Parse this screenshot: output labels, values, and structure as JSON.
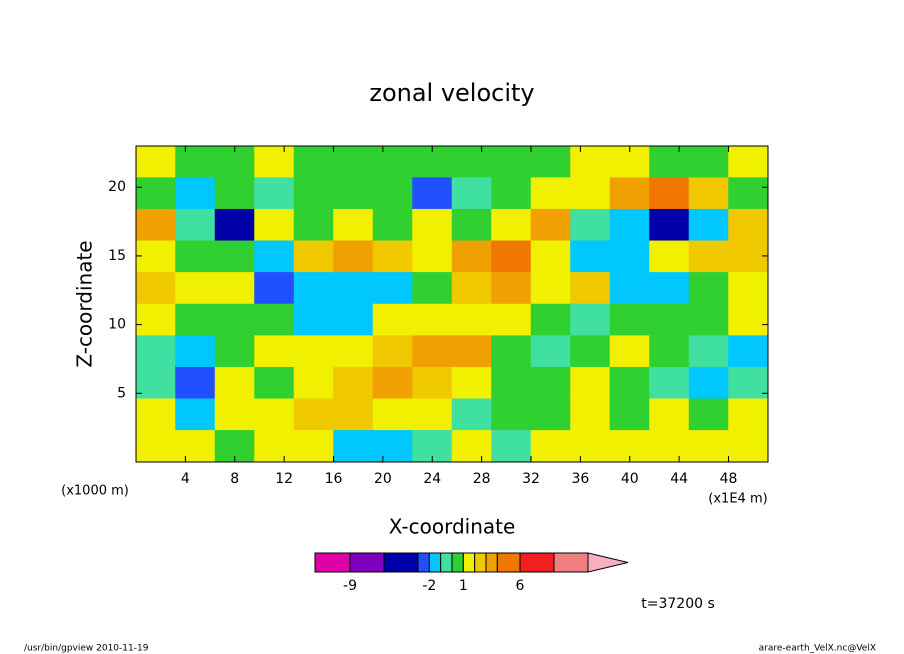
{
  "chart_data": {
    "type": "contour",
    "title": "zonal velocity",
    "x_label": "X-coordinate",
    "y_label": "Z-coordinate",
    "y_unit": "(x1000 m)",
    "x_unit": "(x1E4 m)",
    "time_label": "t=37200 s",
    "footer_left": "/usr/bin/gpview  2010-11-19",
    "footer_right": "arare-earth_VelX.nc@VelX",
    "xlim": [
      0,
      51.2
    ],
    "ylim": [
      0,
      23
    ],
    "xticks": [
      4,
      8,
      12,
      16,
      20,
      24,
      28,
      32,
      36,
      40,
      44,
      48
    ],
    "yticks": [
      5,
      10,
      15,
      20
    ],
    "x": [
      1.6,
      4.8,
      8,
      11.2,
      14.4,
      17.6,
      20.8,
      24,
      27.2,
      30.4,
      33.6,
      36.8,
      40,
      43.2,
      46.4,
      49.6
    ],
    "y": [
      21.85,
      19.55,
      17.25,
      14.95,
      12.65,
      10.35,
      8.05,
      5.75,
      3.45,
      1.15
    ],
    "z": [
      [
        1.5,
        0.5,
        0.5,
        1.5,
        0.5,
        0.5,
        0.5,
        0.5,
        0.5,
        0.5,
        0.5,
        1.5,
        1.5,
        0.5,
        0.5,
        1.5
      ],
      [
        0.5,
        -1.5,
        0.5,
        -0.5,
        0.5,
        0.5,
        0.5,
        -2.5,
        -0.5,
        0.5,
        1.5,
        1.5,
        3.5,
        5,
        2.5,
        0.5
      ],
      [
        3.5,
        -0.5,
        -4,
        1.5,
        0.5,
        1.5,
        0.5,
        1.5,
        0.5,
        1.5,
        3.5,
        -0.5,
        -1.5,
        -4,
        -1.5,
        2.5
      ],
      [
        1.5,
        0.5,
        0.5,
        -1.5,
        2.5,
        3.5,
        2.5,
        1.5,
        3.5,
        5,
        1.5,
        -1.5,
        -1.5,
        1.5,
        2.5,
        2.5
      ],
      [
        2.5,
        1.5,
        1.5,
        -2.5,
        -1.5,
        -1.5,
        -1.5,
        0.5,
        2.5,
        3.5,
        1.5,
        2.5,
        -1.5,
        -1.5,
        0.5,
        1.5
      ],
      [
        1.5,
        0.5,
        0.5,
        0.5,
        -1.5,
        -1.5,
        1.5,
        1.5,
        1.5,
        1.5,
        0.5,
        -0.5,
        0.5,
        0.5,
        0.5,
        1.5
      ],
      [
        -0.5,
        -1.5,
        0.5,
        1.5,
        1.5,
        1.5,
        2.5,
        3.5,
        3.5,
        0.5,
        -0.5,
        0.5,
        1.5,
        0.5,
        -0.5,
        -1.5
      ],
      [
        -0.5,
        -2.5,
        1.5,
        0.5,
        1.5,
        2.5,
        3.5,
        2.5,
        1.5,
        0.5,
        0.5,
        1.5,
        0.5,
        -0.5,
        -1.5,
        -0.5
      ],
      [
        1.5,
        -1.5,
        1.5,
        1.5,
        2.5,
        2.5,
        1.5,
        1.5,
        -0.5,
        0.5,
        0.5,
        1.5,
        0.5,
        1.5,
        0.5,
        1.5
      ],
      [
        1.5,
        1.5,
        0.5,
        1.5,
        1.5,
        -1.5,
        -1.5,
        -0.5,
        1.5,
        -0.5,
        1.5,
        1.5,
        1.5,
        1.5,
        1.5,
        1.5
      ]
    ],
    "colorbar": {
      "levels": [
        -9,
        -6,
        -3,
        -2,
        -1,
        0,
        1,
        2,
        3,
        4,
        6,
        9,
        12
      ],
      "colors": [
        "#e000a8",
        "#8000c0",
        "#0000a8",
        "#2050ff",
        "#00c8ff",
        "#40e0a0",
        "#30d030",
        "#f0f000",
        "#f0c800",
        "#f0a000",
        "#f07800",
        "#f02020",
        "#f08080",
        "#f8b0c0"
      ],
      "ticks": [
        -9,
        -2,
        1,
        6
      ]
    }
  }
}
